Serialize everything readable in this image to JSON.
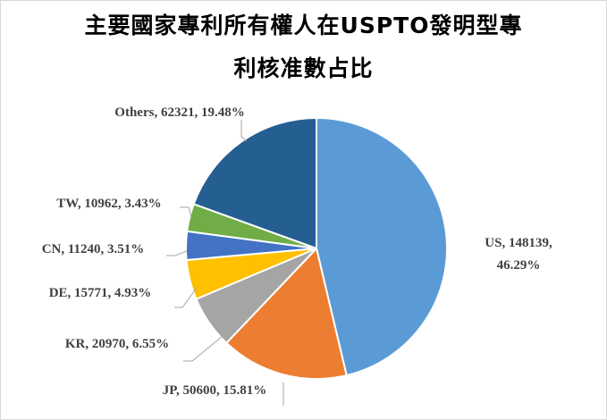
{
  "chart_data": {
    "type": "pie",
    "title_line1": "主要國家專利所有權人在USPTO發明型專",
    "title_line2": "利核准數占比",
    "start_angle_deg": 0,
    "direction": "clockwise",
    "slices": [
      {
        "label": "US",
        "value": 148139,
        "percent": "46.29%",
        "color": "#5b9bd5"
      },
      {
        "label": "JP",
        "value": 50600,
        "percent": "15.81%",
        "color": "#ed7d31"
      },
      {
        "label": "KR",
        "value": 20970,
        "percent": "6.55%",
        "color": "#a5a5a5"
      },
      {
        "label": "DE",
        "value": 15771,
        "percent": "4.93%",
        "color": "#ffc000"
      },
      {
        "label": "CN",
        "value": 11240,
        "percent": "3.51%",
        "color": "#4472c4"
      },
      {
        "label": "TW",
        "value": 10962,
        "percent": "3.43%",
        "color": "#70ad47"
      },
      {
        "label": "Others",
        "value": 62321,
        "percent": "19.48%",
        "color": "#255e91"
      }
    ]
  }
}
